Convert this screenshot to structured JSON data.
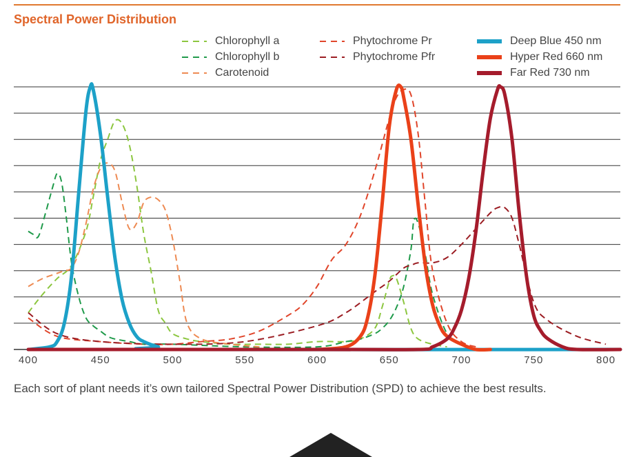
{
  "title": "Spectral Power Distribution",
  "caption": "Each sort of plant needs it’s own tailored Spectral Power Distribution (SPD) to achieve the best results.",
  "colors": {
    "accent": "#e0652a",
    "chlorophyll_a": "#8cc63f",
    "chlorophyll_b": "#1f9a4a",
    "carotenoid": "#ee8a52",
    "phytochrome_pr": "#e0452a",
    "phytochrome_pfr": "#9b1c22",
    "deep_blue": "#1da1c8",
    "hyper_red": "#ea4119",
    "far_red": "#a51c2c"
  },
  "legend": [
    {
      "label": "Chlorophyll a",
      "style": "dashed",
      "color": "#8cc63f"
    },
    {
      "label": "Chlorophyll b",
      "style": "dashed",
      "color": "#1f9a4a"
    },
    {
      "label": "Carotenoid",
      "style": "dashed",
      "color": "#ee8a52"
    },
    {
      "label": "Phytochrome Pr",
      "style": "dashed",
      "color": "#e0452a"
    },
    {
      "label": "Phytochrome Pfr",
      "style": "dashed",
      "color": "#9b1c22"
    },
    {
      "label": "Deep Blue 450 nm",
      "style": "solid",
      "color": "#1da1c8"
    },
    {
      "label": "Hyper Red 660 nm",
      "style": "solid",
      "color": "#ea4119"
    },
    {
      "label": "Far Red 730 nm",
      "style": "solid",
      "color": "#a51c2c"
    }
  ],
  "chart_data": {
    "type": "line",
    "title": "Spectral Power Distribution",
    "xlabel": "",
    "ylabel": "",
    "xlim": [
      390,
      810
    ],
    "ylim": [
      0,
      100
    ],
    "xticks": [
      "400",
      "450",
      "500",
      "550",
      "600",
      "650",
      "700",
      "750",
      "800"
    ],
    "grid": true,
    "legend_position": "top",
    "series": [
      {
        "name": "Chlorophyll a",
        "style": "dashed",
        "color": "#8cc63f",
        "x": [
          400,
          410,
          420,
          430,
          440,
          445,
          450,
          455,
          460,
          465,
          470,
          475,
          480,
          485,
          490,
          495,
          500,
          510,
          520,
          540,
          560,
          580,
          600,
          620,
          630,
          640,
          645,
          650,
          652,
          655,
          660,
          665,
          670,
          680,
          690
        ],
        "y": [
          14,
          21,
          27,
          32,
          45,
          58,
          72,
          80,
          87,
          86,
          78,
          63,
          44,
          30,
          15,
          10,
          6,
          4,
          3,
          2,
          2,
          2,
          3,
          3,
          4,
          8,
          16,
          26,
          28,
          27,
          18,
          8,
          4,
          2,
          1
        ]
      },
      {
        "name": "Chlorophyll b",
        "style": "dashed",
        "color": "#1f9a4a",
        "x": [
          400,
          403,
          407,
          412,
          417,
          420,
          423,
          426,
          430,
          435,
          440,
          445,
          450,
          455,
          460,
          470,
          480,
          500,
          550,
          600,
          620,
          630,
          640,
          645,
          650,
          655,
          660,
          665,
          667,
          670,
          675,
          680,
          690,
          700
        ],
        "y": [
          45,
          44,
          43,
          52,
          62,
          67,
          64,
          52,
          33,
          20,
          12,
          9,
          7,
          5,
          4,
          3,
          2,
          2,
          1,
          1,
          3,
          4,
          6,
          8,
          11,
          16,
          24,
          38,
          49,
          48,
          36,
          21,
          6,
          2
        ]
      },
      {
        "name": "Carotenoid",
        "style": "dashed",
        "color": "#ee8a52",
        "x": [
          400,
          410,
          420,
          425,
          430,
          435,
          440,
          445,
          450,
          455,
          460,
          465,
          470,
          475,
          480,
          485,
          490,
          495,
          500,
          505,
          510,
          520,
          540,
          560
        ],
        "y": [
          24,
          27,
          29,
          30,
          31,
          37,
          48,
          61,
          69,
          71,
          68,
          56,
          46,
          48,
          56,
          58,
          57,
          53,
          42,
          26,
          10,
          4,
          2,
          1
        ]
      },
      {
        "name": "Phytochrome Pr",
        "style": "dashed",
        "color": "#e0452a",
        "x": [
          400,
          420,
          450,
          480,
          500,
          520,
          540,
          560,
          580,
          590,
          600,
          610,
          620,
          630,
          640,
          650,
          655,
          660,
          665,
          670,
          675,
          680,
          690,
          700,
          710
        ],
        "y": [
          12,
          5,
          3,
          2,
          2,
          3,
          4,
          7,
          13,
          17,
          24,
          34,
          40,
          51,
          68,
          88,
          96,
          99,
          97,
          82,
          55,
          30,
          10,
          3,
          1
        ]
      },
      {
        "name": "Phytochrome Pfr",
        "style": "dashed",
        "color": "#9b1c22",
        "x": [
          400,
          420,
          450,
          500,
          550,
          600,
          620,
          640,
          650,
          660,
          665,
          670,
          680,
          690,
          700,
          710,
          720,
          725,
          730,
          735,
          740,
          750,
          760,
          780,
          800
        ],
        "y": [
          14,
          6,
          3,
          2,
          3,
          9,
          14,
          22,
          26,
          31,
          32,
          33,
          33,
          35,
          40,
          46,
          52,
          54,
          54,
          50,
          40,
          18,
          11,
          5,
          2
        ]
      },
      {
        "name": "Deep Blue 450 nm",
        "style": "solid",
        "color": "#1da1c8",
        "x": [
          400,
          415,
          420,
          425,
          430,
          435,
          440,
          443,
          445,
          450,
          455,
          460,
          465,
          470,
          475,
          480,
          490,
          500
        ],
        "y": [
          0,
          1,
          3,
          10,
          28,
          60,
          91,
          100,
          99,
          82,
          58,
          35,
          19,
          10,
          5,
          3,
          1,
          0
        ],
        "xtail": [
          500,
          810
        ],
        "ytail": [
          0,
          0
        ]
      },
      {
        "name": "Hyper Red 660 nm",
        "style": "solid",
        "color": "#ea4119",
        "x": [
          600,
          620,
          630,
          635,
          640,
          645,
          650,
          655,
          658,
          660,
          665,
          670,
          675,
          680,
          685,
          690,
          700,
          710,
          720
        ],
        "y": [
          0,
          1,
          5,
          12,
          28,
          55,
          85,
          99,
          100,
          96,
          80,
          55,
          32,
          17,
          9,
          5,
          2,
          0,
          0
        ]
      },
      {
        "name": "Far Red 730 nm",
        "style": "solid",
        "color": "#a51c2c",
        "x": [
          400,
          600,
          670,
          680,
          690,
          695,
          700,
          705,
          710,
          715,
          720,
          725,
          727,
          730,
          735,
          740,
          745,
          750,
          755,
          760,
          770,
          780,
          810
        ],
        "y": [
          0,
          0,
          0,
          1,
          4,
          8,
          15,
          27,
          45,
          68,
          88,
          99,
          100,
          97,
          80,
          52,
          28,
          13,
          7,
          4,
          1,
          0,
          0
        ]
      }
    ]
  }
}
